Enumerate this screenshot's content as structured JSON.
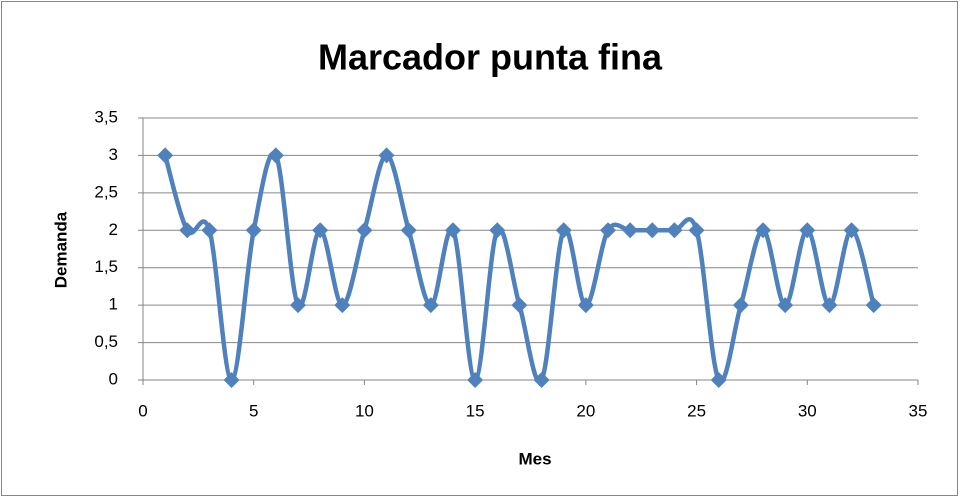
{
  "chart_data": {
    "type": "scatter",
    "title": "Marcador punta fina",
    "xlabel": "Mes",
    "ylabel": "Demanda",
    "series": [
      {
        "name": "Demanda",
        "color": "#4f81bd",
        "x": [
          1,
          2,
          3,
          4,
          5,
          6,
          7,
          8,
          9,
          10,
          11,
          12,
          13,
          14,
          15,
          16,
          17,
          18,
          19,
          20,
          21,
          22,
          23,
          24,
          25,
          26,
          27,
          28,
          29,
          30,
          31,
          32,
          33
        ],
        "values": [
          3,
          2,
          2,
          0,
          2,
          3,
          1,
          2,
          1,
          2,
          3,
          2,
          1,
          2,
          0,
          2,
          1,
          0,
          2,
          1,
          2,
          2,
          2,
          2,
          2,
          0,
          1,
          2,
          1,
          2,
          1,
          2,
          1
        ]
      }
    ],
    "xlim": [
      0,
      35
    ],
    "xticks": [
      0,
      5,
      10,
      15,
      20,
      25,
      30,
      35
    ],
    "ylim": [
      0,
      3.5
    ],
    "yticks": [
      0,
      {
        "value": 0.5,
        "label": "0,5"
      },
      1,
      {
        "value": 1.5,
        "label": "1,5"
      },
      2,
      {
        "value": 2.5,
        "label": "2,5"
      },
      3,
      {
        "value": 3.5,
        "label": "3,5"
      }
    ],
    "grid": true,
    "smooth": true
  }
}
